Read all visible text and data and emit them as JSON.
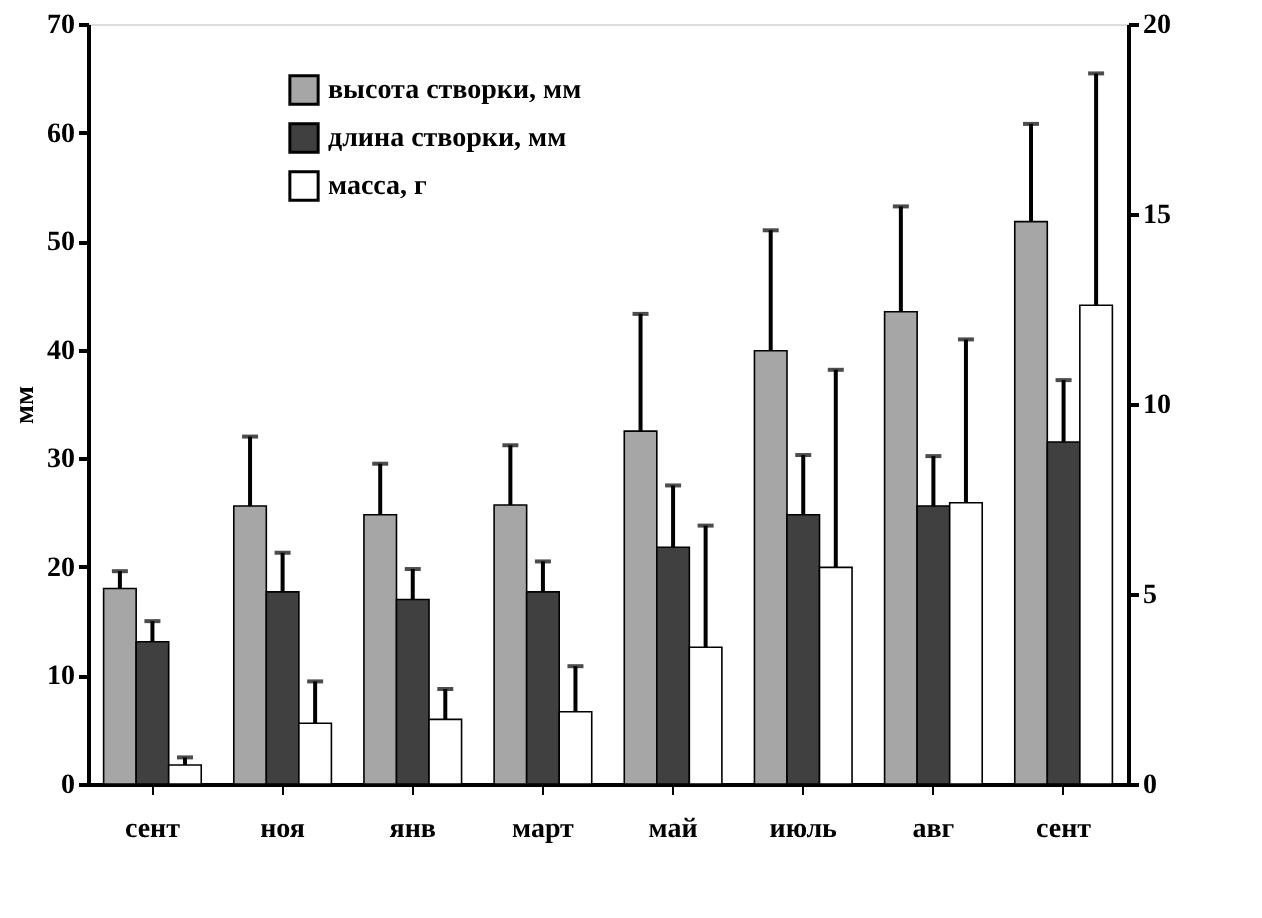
{
  "chart_data": {
    "type": "bar",
    "ylabel": "мм",
    "categories": [
      "сент",
      "ноя",
      "янв",
      "март",
      "май",
      "июль",
      "авг",
      "сент"
    ],
    "series": [
      {
        "name": "высота створки, мм",
        "color": "#a6a6a6",
        "values": [
          18,
          25.6,
          24.8,
          25.7,
          32.5,
          39.9,
          43.5,
          51.8
        ],
        "errors": [
          [
            18,
            19.6
          ],
          [
            25.6,
            32
          ],
          [
            24.8,
            29.5
          ],
          [
            25.7,
            31.2
          ],
          [
            32.5,
            43.3
          ],
          [
            39.9,
            51
          ],
          [
            43.5,
            53.2
          ],
          [
            51.8,
            60.8
          ]
        ]
      },
      {
        "name": "длина створки, мм",
        "color": "#404040",
        "values": [
          13.1,
          17.7,
          17,
          17.7,
          21.8,
          24.8,
          25.6,
          31.5
        ],
        "errors": [
          [
            13.1,
            15
          ],
          [
            17.7,
            21.3
          ],
          [
            17,
            19.8
          ],
          [
            17.7,
            20.5
          ],
          [
            21.8,
            27.5
          ],
          [
            24.8,
            30.3
          ],
          [
            25.6,
            30.2
          ],
          [
            31.5,
            37.2
          ]
        ]
      },
      {
        "name": "масса, г",
        "color": "#ffffff",
        "axis": "y2",
        "values": [
          0.5,
          1.6,
          1.7,
          1.9,
          3.6,
          5.7,
          7.4,
          12.6
        ],
        "errors": [
          [
            0.5,
            0.7
          ],
          [
            1.6,
            2.7
          ],
          [
            1.7,
            2.5
          ],
          [
            1.9,
            3.1
          ],
          [
            3.6,
            6.8
          ],
          [
            5.7,
            10.9
          ],
          [
            7.4,
            11.7
          ],
          [
            12.6,
            18.7
          ]
        ]
      }
    ],
    "ylim": [
      0,
      70
    ],
    "yticks": [
      0,
      10,
      20,
      30,
      40,
      50,
      60,
      70
    ],
    "y2lim": [
      0,
      20
    ],
    "y2ticks": [
      0,
      5,
      10,
      15,
      20
    ],
    "grid": false,
    "legend": "top left"
  }
}
